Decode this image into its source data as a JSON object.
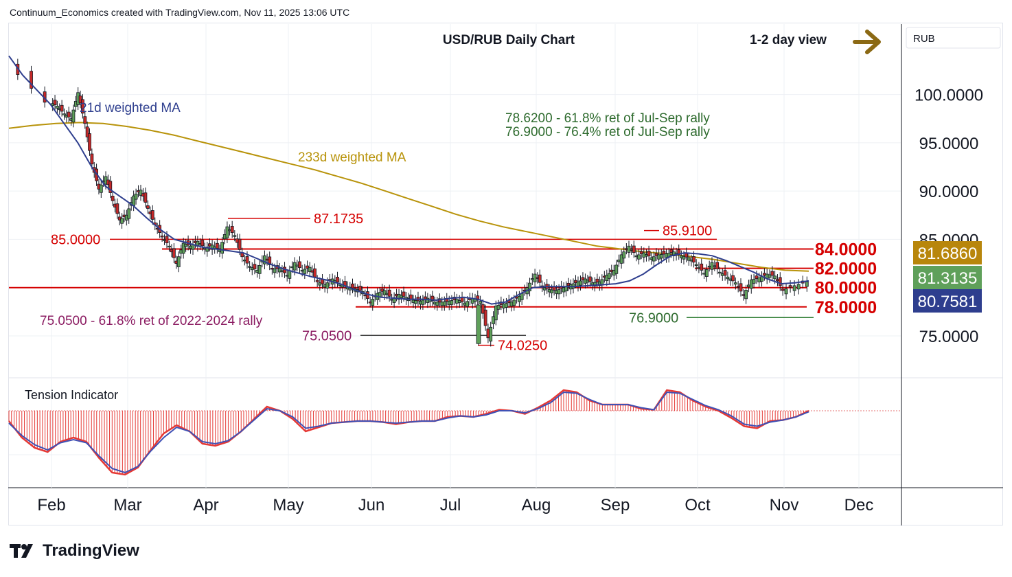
{
  "header": {
    "credit": "Continuum_Economics created with TradingView.com, Nov 11, 2025 13:06 UTC"
  },
  "brand": {
    "name": "TradingView"
  },
  "chart_data": {
    "type": "candlestick",
    "title": "USD/RUB Daily Chart",
    "view_label": "1-2 day view",
    "view_arrow": "right",
    "currency_label": "RUB",
    "x_ticks": [
      "Feb",
      "Mar",
      "Apr",
      "May",
      "Jun",
      "Jul",
      "Aug",
      "Sep",
      "Oct",
      "Nov",
      "Dec"
    ],
    "y_axis": {
      "ticks": [
        {
          "label": "100.0000",
          "value": 100
        },
        {
          "label": "95.0000",
          "value": 95
        },
        {
          "label": "90.0000",
          "value": 90
        },
        {
          "label": "85.0000",
          "value": 85
        },
        {
          "label": "75.0000",
          "value": 75
        }
      ],
      "range": [
        70.8,
        107.3
      ]
    },
    "price_badges": [
      {
        "label": "81.6860",
        "value": 81.686,
        "color": "#b8860b",
        "series": "233d weighted MA"
      },
      {
        "label": "81.3135",
        "value": 81.3135,
        "color": "#5fa05a",
        "series": "last price"
      },
      {
        "label": "80.7581",
        "value": 80.7581,
        "color": "#2e3e8e",
        "series": "21d weighted MA"
      }
    ],
    "level_labels": [
      {
        "label": "84.0000",
        "value": 84.0
      },
      {
        "label": "82.0000",
        "value": 82.0
      },
      {
        "label": "80.0000",
        "value": 80.0
      },
      {
        "label": "78.0000",
        "value": 78.0
      }
    ],
    "marked_levels": [
      {
        "label": "87.1735",
        "value": 87.1735
      },
      {
        "label": "85.9100",
        "value": 85.91
      },
      {
        "label": "85.0000",
        "value": 85.0
      },
      {
        "label": "74.0250",
        "value": 74.025
      },
      {
        "label": "75.0500",
        "value": 75.05
      },
      {
        "label": "76.9000",
        "value": 76.9
      }
    ],
    "annotations": {
      "ret_618_jul_sep": "78.6200 - 61.8% ret of Jul-Sep rally",
      "ret_764_jul_sep": "76.9000 - 76.4% ret of Jul-Sep rally",
      "ret_618_2022_2024": "75.0500 - 61.8% ret of 2022-2024 rally"
    },
    "series_labels": {
      "ma21": "21d weighted MA",
      "ma233": "233d weighted MA"
    },
    "ohlc_months": [
      {
        "month": "Feb",
        "close_path": [
          99.2,
          98.8,
          98.0,
          97.5,
          100.2,
          97.0,
          92.8,
          90.2,
          91.5,
          89.0,
          87.0
        ]
      },
      {
        "month": "Mar",
        "close_path": [
          87.5,
          89.5,
          90.1,
          88.2,
          86.5,
          85.3,
          84.3,
          82.5,
          84.6,
          84.3,
          84.8
        ]
      },
      {
        "month": "Apr",
        "close_path": [
          84.1,
          84.4,
          83.9,
          86.3,
          85.4,
          83.2,
          82.2,
          81.8,
          83.3,
          81.9,
          82.0
        ]
      },
      {
        "month": "May",
        "close_path": [
          81.3,
          82.6,
          81.8,
          82.1,
          80.6,
          80.3,
          80.9,
          80.4,
          80.1,
          79.9,
          79.6
        ]
      },
      {
        "month": "Jun",
        "close_path": [
          78.5,
          79.4,
          79.7,
          78.8,
          79.3,
          79.0,
          78.7,
          78.6,
          78.9,
          78.5,
          78.5
        ]
      },
      {
        "month": "Jul",
        "close_path": [
          78.6,
          78.8,
          78.4,
          78.9,
          78.6,
          74.8,
          78.1,
          78.3,
          78.5,
          79.1,
          80.0
        ]
      },
      {
        "month": "Aug",
        "close_path": [
          81.4,
          80.1,
          79.8,
          79.7,
          80.0,
          80.3,
          80.6,
          80.9,
          80.5,
          80.6,
          81.3
        ]
      },
      {
        "month": "Sep",
        "close_path": [
          81.8,
          83.4,
          84.3,
          83.3,
          83.6,
          83.1,
          83.4,
          83.5,
          83.7,
          83.3,
          83.1
        ]
      },
      {
        "month": "Oct",
        "close_path": [
          82.4,
          81.5,
          82.6,
          81.6,
          81.1,
          80.5,
          79.2,
          80.8,
          81.0,
          81.4,
          81.2
        ]
      },
      {
        "month": "Nov",
        "close_path": [
          79.7,
          80.2,
          80.6,
          81.0,
          81.2,
          81.3
        ]
      }
    ],
    "ma21": [
      104.0,
      102.0,
      100.5,
      99.0,
      97.0,
      95.0,
      92.5,
      90.5,
      89.5,
      88.5,
      87.2,
      86.0,
      85.0,
      84.6,
      84.2,
      84.0,
      83.8,
      83.6,
      83.0,
      82.4,
      81.9,
      81.5,
      81.1,
      80.8,
      80.4,
      79.8,
      79.3,
      79.0,
      78.9,
      78.8,
      78.8,
      78.7,
      78.9,
      79.0,
      78.8,
      78.3,
      78.5,
      79.3,
      80.0,
      80.1,
      80.1,
      80.1,
      80.2,
      80.3,
      80.4,
      80.7,
      81.4,
      82.4,
      83.3,
      83.6,
      83.5,
      83.3,
      82.8,
      82.2,
      81.6,
      80.9,
      80.4,
      80.5,
      80.7
    ],
    "ma233": [
      96.5,
      96.8,
      97.0,
      97.1,
      97.0,
      96.7,
      96.3,
      95.8,
      95.2,
      94.6,
      94.0,
      93.4,
      92.8,
      92.2,
      91.5,
      90.8,
      90.0,
      89.2,
      88.4,
      87.6,
      86.9,
      86.3,
      85.8,
      85.3,
      84.8,
      84.3,
      84.0,
      83.7,
      83.5,
      83.2,
      82.9,
      82.5,
      82.1,
      81.8,
      81.7
    ],
    "tension_indicator": {
      "label": "Tension Indicator",
      "series_red": [
        -1.0,
        -2.6,
        -3.6,
        -4.0,
        -3.0,
        -2.6,
        -3.0,
        -4.6,
        -6.0,
        -6.2,
        -5.5,
        -3.8,
        -2.2,
        -1.4,
        -2.0,
        -3.2,
        -3.4,
        -3.0,
        -2.0,
        -0.8,
        0.4,
        0.0,
        -0.8,
        -2.0,
        -1.6,
        -1.2,
        -1.1,
        -1.0,
        -1.0,
        -1.1,
        -1.3,
        -1.1,
        -1.0,
        -1.0,
        -0.6,
        -0.5,
        -0.6,
        -0.3,
        0.1,
        0.0,
        -0.3,
        0.3,
        1.0,
        2.0,
        1.8,
        1.0,
        0.6,
        0.6,
        0.6,
        0.2,
        0.1,
        2.0,
        1.8,
        1.0,
        0.4,
        0.0,
        -0.7,
        -1.5,
        -1.7,
        -1.0,
        -0.9,
        -0.6,
        0.0
      ],
      "series_blue": [
        -1.2,
        -2.4,
        -3.3,
        -3.8,
        -3.1,
        -2.8,
        -3.1,
        -4.4,
        -5.6,
        -6.0,
        -5.4,
        -3.9,
        -2.6,
        -1.6,
        -2.0,
        -3.0,
        -3.2,
        -2.9,
        -2.0,
        -0.9,
        0.2,
        0.0,
        -0.6,
        -1.7,
        -1.5,
        -1.2,
        -1.1,
        -1.0,
        -1.0,
        -1.1,
        -1.2,
        -1.1,
        -1.0,
        -1.0,
        -0.7,
        -0.5,
        -0.6,
        -0.4,
        0.0,
        0.0,
        -0.2,
        0.2,
        0.8,
        1.8,
        1.7,
        1.1,
        0.6,
        0.6,
        0.6,
        0.3,
        0.1,
        1.8,
        1.7,
        1.1,
        0.5,
        0.1,
        -0.5,
        -1.3,
        -1.5,
        -1.1,
        -0.9,
        -0.6,
        -0.1
      ]
    }
  }
}
